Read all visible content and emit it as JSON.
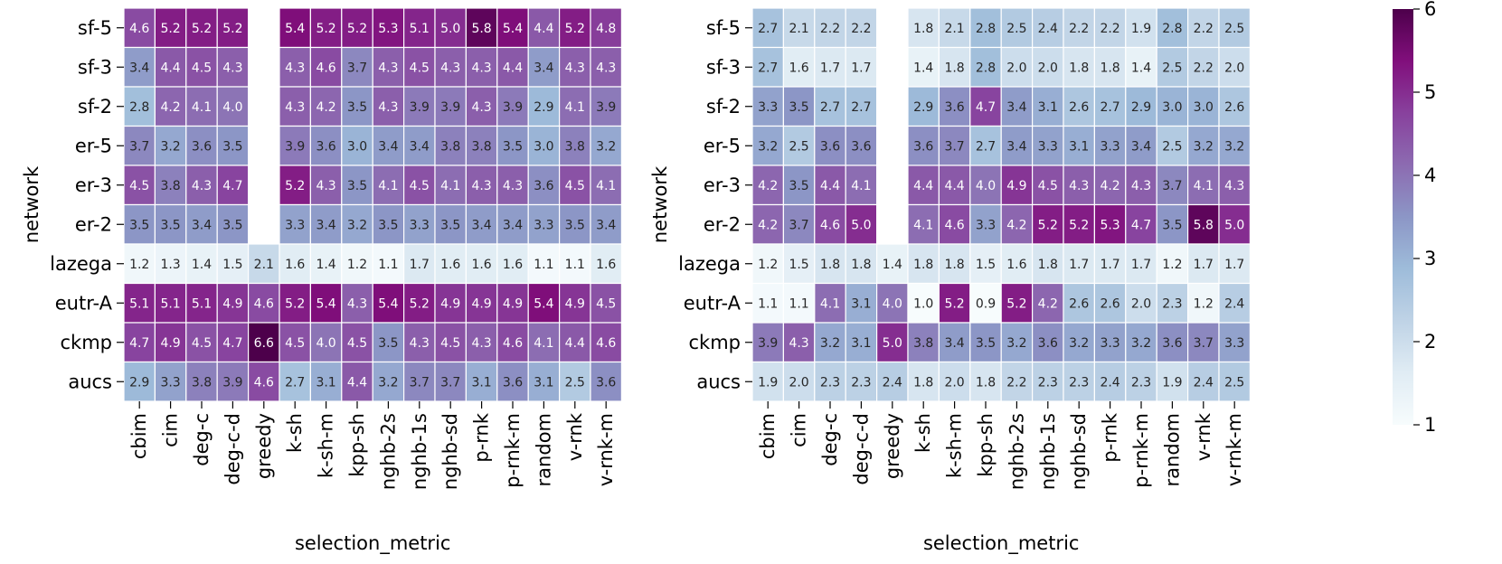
{
  "chart_data": [
    {
      "type": "heatmap",
      "title": "",
      "xlabel": "selection_metric",
      "ylabel": "network",
      "rows": [
        "sf-5",
        "sf-3",
        "sf-2",
        "er-5",
        "er-3",
        "er-2",
        "lazega",
        "eutr-A",
        "ckmp",
        "aucs"
      ],
      "columns": [
        "cbim",
        "cim",
        "deg-c",
        "deg-c-d",
        "greedy",
        "k-sh",
        "k-sh-m",
        "kpp-sh",
        "nghb-2s",
        "nghb-1s",
        "nghb-sd",
        "p-rnk",
        "p-rnk-m",
        "random",
        "v-rnk",
        "v-rnk-m"
      ],
      "values": [
        [
          "4.6",
          "5.2",
          "5.2",
          "5.2",
          null,
          "5.4",
          "5.2",
          "5.2",
          "5.3",
          "5.1",
          "5.0",
          "5.8",
          "5.4",
          "4.4",
          "5.2",
          "4.8"
        ],
        [
          "3.4",
          "4.4",
          "4.5",
          "4.3",
          null,
          "4.3",
          "4.6",
          "3.7",
          "4.3",
          "4.5",
          "4.3",
          "4.3",
          "4.4",
          "3.4",
          "4.3",
          "4.3"
        ],
        [
          "2.8",
          "4.2",
          "4.1",
          "4.0",
          null,
          "4.3",
          "4.2",
          "3.5",
          "4.3",
          "3.9",
          "3.9",
          "4.3",
          "3.9",
          "2.9",
          "4.1",
          "3.9"
        ],
        [
          "3.7",
          "3.2",
          "3.6",
          "3.5",
          null,
          "3.9",
          "3.6",
          "3.0",
          "3.4",
          "3.4",
          "3.8",
          "3.8",
          "3.5",
          "3.0",
          "3.8",
          "3.2"
        ],
        [
          "4.5",
          "3.8",
          "4.3",
          "4.7",
          null,
          "5.2",
          "4.3",
          "3.5",
          "4.1",
          "4.5",
          "4.1",
          "4.3",
          "4.3",
          "3.6",
          "4.5",
          "4.1"
        ],
        [
          "3.5",
          "3.5",
          "3.4",
          "3.5",
          null,
          "3.3",
          "3.4",
          "3.2",
          "3.5",
          "3.3",
          "3.5",
          "3.4",
          "3.4",
          "3.3",
          "3.5",
          "3.4"
        ],
        [
          "1.2",
          "1.3",
          "1.4",
          "1.5",
          "2.1",
          "1.6",
          "1.4",
          "1.2",
          "1.1",
          "1.7",
          "1.6",
          "1.6",
          "1.6",
          "1.1",
          "1.1",
          "1.6"
        ],
        [
          "5.1",
          "5.1",
          "5.1",
          "4.9",
          "4.6",
          "5.2",
          "5.4",
          "4.3",
          "5.4",
          "5.2",
          "4.9",
          "4.9",
          "4.9",
          "5.4",
          "4.9",
          "4.5"
        ],
        [
          "4.7",
          "4.9",
          "4.5",
          "4.7",
          "6.6",
          "4.5",
          "4.0",
          "4.5",
          "3.5",
          "4.3",
          "4.5",
          "4.3",
          "4.6",
          "4.1",
          "4.4",
          "4.6"
        ],
        [
          "2.9",
          "3.3",
          "3.8",
          "3.9",
          "4.6",
          "2.7",
          "3.1",
          "4.4",
          "3.2",
          "3.7",
          "3.7",
          "3.1",
          "3.6",
          "3.1",
          "2.5",
          "3.6"
        ]
      ]
    },
    {
      "type": "heatmap",
      "title": "",
      "xlabel": "selection_metric",
      "ylabel": "network",
      "rows": [
        "sf-5",
        "sf-3",
        "sf-2",
        "er-5",
        "er-3",
        "er-2",
        "lazega",
        "eutr-A",
        "ckmp",
        "aucs"
      ],
      "columns": [
        "cbim",
        "cim",
        "deg-c",
        "deg-c-d",
        "greedy",
        "k-sh",
        "k-sh-m",
        "kpp-sh",
        "nghb-2s",
        "nghb-1s",
        "nghb-sd",
        "p-rnk",
        "p-rnk-m",
        "random",
        "v-rnk",
        "v-rnk-m"
      ],
      "values": [
        [
          "2.7",
          "2.1",
          "2.2",
          "2.2",
          null,
          "1.8",
          "2.1",
          "2.8",
          "2.5",
          "2.4",
          "2.2",
          "2.2",
          "1.9",
          "2.8",
          "2.2",
          "2.5"
        ],
        [
          "2.7",
          "1.6",
          "1.7",
          "1.7",
          null,
          "1.4",
          "1.8",
          "2.8",
          "2.0",
          "2.0",
          "1.8",
          "1.8",
          "1.4",
          "2.5",
          "2.2",
          "2.0"
        ],
        [
          "3.3",
          "3.5",
          "2.7",
          "2.7",
          null,
          "2.9",
          "3.6",
          "4.7",
          "3.4",
          "3.1",
          "2.6",
          "2.7",
          "2.9",
          "3.0",
          "3.0",
          "2.6"
        ],
        [
          "3.2",
          "2.5",
          "3.6",
          "3.6",
          null,
          "3.6",
          "3.7",
          "2.7",
          "3.4",
          "3.3",
          "3.1",
          "3.3",
          "3.4",
          "2.5",
          "3.2",
          "3.2"
        ],
        [
          "4.2",
          "3.5",
          "4.4",
          "4.1",
          null,
          "4.4",
          "4.4",
          "4.0",
          "4.9",
          "4.5",
          "4.3",
          "4.2",
          "4.3",
          "3.7",
          "4.1",
          "4.3"
        ],
        [
          "4.2",
          "3.7",
          "4.6",
          "5.0",
          null,
          "4.1",
          "4.6",
          "3.3",
          "4.2",
          "5.2",
          "5.2",
          "5.3",
          "4.7",
          "3.5",
          "5.8",
          "5.0"
        ],
        [
          "1.2",
          "1.5",
          "1.8",
          "1.8",
          "1.4",
          "1.8",
          "1.8",
          "1.5",
          "1.6",
          "1.8",
          "1.7",
          "1.7",
          "1.7",
          "1.2",
          "1.7",
          "1.7"
        ],
        [
          "1.1",
          "1.1",
          "4.1",
          "3.1",
          "4.0",
          "1.0",
          "5.2",
          "0.9",
          "5.2",
          "4.2",
          "2.6",
          "2.6",
          "2.0",
          "2.3",
          "1.2",
          "2.4"
        ],
        [
          "3.9",
          "4.3",
          "3.2",
          "3.1",
          "5.0",
          "3.8",
          "3.4",
          "3.5",
          "3.2",
          "3.6",
          "3.2",
          "3.3",
          "3.2",
          "3.6",
          "3.7",
          "3.3"
        ],
        [
          "1.9",
          "2.0",
          "2.3",
          "2.3",
          "2.4",
          "1.8",
          "2.0",
          "1.8",
          "2.2",
          "2.3",
          "2.3",
          "2.4",
          "2.3",
          "1.9",
          "2.4",
          "2.5"
        ]
      ]
    }
  ],
  "colorbar": {
    "vmin": 1,
    "vmax": 6,
    "ticks": [
      "1",
      "2",
      "3",
      "4",
      "5",
      "6"
    ],
    "colormap": "BuPu",
    "stops": [
      "#f7fcfd",
      "#e0ecf4",
      "#bfd3e6",
      "#9ebcda",
      "#8c96c6",
      "#8c6bb1",
      "#88419d",
      "#810f7c",
      "#4d004b"
    ]
  }
}
